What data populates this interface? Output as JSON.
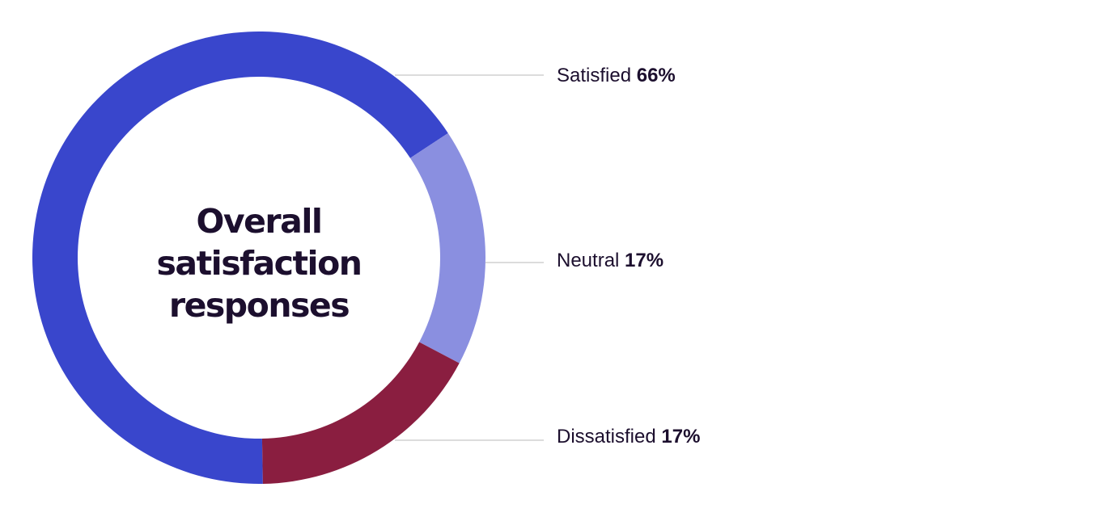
{
  "chart_data": {
    "type": "pie",
    "style": "donut",
    "title_lines": [
      "Overall",
      "satisfaction",
      "responses"
    ],
    "slices": [
      {
        "label": "Satisfied",
        "value": 66,
        "value_text": "66%",
        "color": "#3946cc"
      },
      {
        "label": "Neutral",
        "value": 17,
        "value_text": "17%",
        "color": "#8a8fe0"
      },
      {
        "label": "Dissatisfied",
        "value": 17,
        "value_text": "17%",
        "color": "#8a1e40"
      }
    ],
    "legend_placement": "right",
    "leader_line_color": "#c8c8c8",
    "text_color": "#1c0f2e"
  }
}
